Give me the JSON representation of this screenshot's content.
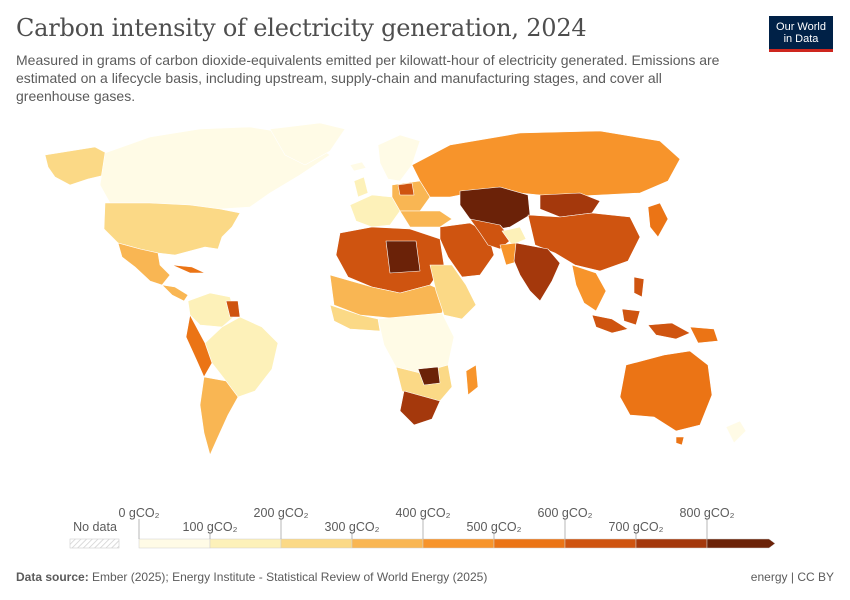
{
  "header": {
    "title": "Carbon intensity of electricity generation, 2024",
    "subtitle": "Measured in grams of carbon dioxide-equivalents emitted per kilowatt-hour of electricity generated. Emissions are estimated on a lifecycle basis, including upstream, supply-chain and manufacturing stages, and cover all greenhouse gases.",
    "logo_line1": "Our World",
    "logo_line2": "in Data"
  },
  "legend": {
    "no_data_label": "No data",
    "upper_ticks": [
      "0 gCO₂",
      "200 gCO₂",
      "400 gCO₂",
      "600 gCO₂",
      "800 gCO₂"
    ],
    "lower_ticks": [
      "100 gCO₂",
      "300 gCO₂",
      "500 gCO₂",
      "700 gCO₂"
    ],
    "colors": [
      "#fffbe6",
      "#fdf1b9",
      "#fbd986",
      "#f9b653",
      "#f7942b",
      "#eb7415",
      "#cf5410",
      "#a4380c",
      "#6b2208"
    ]
  },
  "footer": {
    "source_label": "Data source:",
    "source_text": "Ember (2025); Energy Institute - Statistical Review of World Energy (2025)",
    "topic": "energy",
    "separator": "|",
    "license": "CC BY"
  }
}
